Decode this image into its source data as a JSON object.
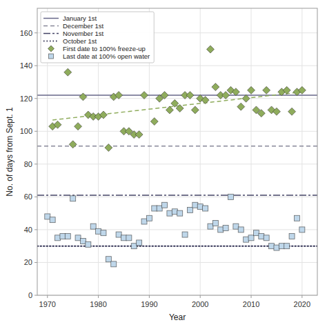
{
  "chart_data": {
    "type": "scatter",
    "xlabel": "Year",
    "ylabel": "No. of days from Sept. 1",
    "xlim": [
      1968,
      2023
    ],
    "ylim": [
      0,
      175
    ],
    "xticks": [
      1970,
      1980,
      1990,
      2000,
      2010,
      2020
    ],
    "yticks": [
      0,
      20,
      40,
      60,
      80,
      100,
      120,
      140,
      160
    ],
    "grid": true,
    "legend": "upper left",
    "series": [
      {
        "name": "January 1st",
        "type": "hline",
        "values": [
          122
        ],
        "color": "#666688",
        "line_style": "solid"
      },
      {
        "name": "December 1st",
        "type": "hline",
        "values": [
          91
        ],
        "color": "#888899",
        "line_style": "dashed"
      },
      {
        "name": "November 1st",
        "type": "hline",
        "values": [
          61
        ],
        "color": "#444466",
        "line_style": "dashdot"
      },
      {
        "name": "October 1st",
        "type": "hline",
        "values": [
          30
        ],
        "color": "#333355",
        "line_style": "dotted"
      },
      {
        "name": "First date to 100% freeze-up",
        "type": "scatter",
        "marker": "diamond",
        "color": "#8fac5c",
        "x": [
          1971,
          1972,
          1974,
          1975,
          1976,
          1977,
          1978,
          1979,
          1980,
          1981,
          1982,
          1983,
          1984,
          1985,
          1986,
          1987,
          1988,
          1989,
          1991,
          1992,
          1993,
          1994,
          1995,
          1996,
          1997,
          1998,
          1999,
          2000,
          2001,
          2002,
          2003,
          2004,
          2005,
          2006,
          2007,
          2008,
          2009,
          2010,
          2011,
          2012,
          2013,
          2014,
          2015,
          2016,
          2017,
          2018,
          2019,
          2020
        ],
        "values": [
          103,
          104,
          136,
          92,
          103,
          121,
          110,
          109,
          109,
          110,
          90,
          121,
          122,
          100,
          100,
          98,
          98,
          122,
          106,
          120,
          122,
          113,
          117,
          114,
          122,
          122,
          113,
          120,
          119,
          150,
          127,
          122,
          122,
          125,
          124,
          115,
          120,
          125,
          113,
          111,
          125,
          113,
          112,
          124,
          125,
          112,
          124,
          125
        ]
      },
      {
        "name": "Last date at 100% open water",
        "type": "scatter",
        "marker": "square",
        "color": "#bfd7ea",
        "x": [
          1970,
          1971,
          1972,
          1973,
          1974,
          1975,
          1976,
          1977,
          1978,
          1979,
          1980,
          1981,
          1982,
          1983,
          1984,
          1985,
          1986,
          1987,
          1988,
          1989,
          1990,
          1991,
          1992,
          1993,
          1994,
          1995,
          1996,
          1997,
          1998,
          1999,
          2000,
          2001,
          2002,
          2003,
          2004,
          2005,
          2006,
          2007,
          2008,
          2009,
          2010,
          2011,
          2012,
          2013,
          2014,
          2015,
          2016,
          2017,
          2018,
          2019,
          2020
        ],
        "values": [
          48,
          46,
          35,
          36,
          36,
          59,
          35,
          33,
          31,
          42,
          39,
          38,
          22,
          19,
          37,
          35,
          35,
          30,
          32,
          45,
          47,
          53,
          53,
          55,
          50,
          51,
          50,
          37,
          52,
          55,
          54,
          53,
          42,
          44,
          40,
          41,
          60,
          42,
          40,
          34,
          35,
          38,
          36,
          35,
          30,
          29,
          30,
          30,
          36,
          47,
          40
        ]
      },
      {
        "type": "line",
        "line_style": "dashed",
        "color": "#8fac5c",
        "x": [
          1971,
          2020
        ],
        "values": [
          106.86,
          123.99
        ]
      }
    ]
  }
}
